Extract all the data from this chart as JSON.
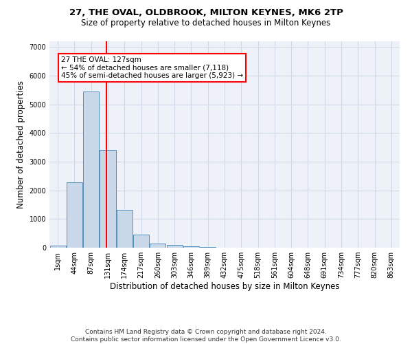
{
  "title1": "27, THE OVAL, OLDBROOK, MILTON KEYNES, MK6 2TP",
  "title2": "Size of property relative to detached houses in Milton Keynes",
  "xlabel": "Distribution of detached houses by size in Milton Keynes",
  "ylabel": "Number of detached properties",
  "footer1": "Contains HM Land Registry data © Crown copyright and database right 2024.",
  "footer2": "Contains public sector information licensed under the Open Government Licence v3.0.",
  "bar_labels": [
    "1sqm",
    "44sqm",
    "87sqm",
    "131sqm",
    "174sqm",
    "217sqm",
    "260sqm",
    "303sqm",
    "346sqm",
    "389sqm",
    "432sqm",
    "475sqm",
    "518sqm",
    "561sqm",
    "604sqm",
    "648sqm",
    "691sqm",
    "734sqm",
    "777sqm",
    "820sqm",
    "863sqm"
  ],
  "bar_values": [
    75,
    2270,
    5460,
    3420,
    1310,
    465,
    155,
    95,
    60,
    30,
    10,
    0,
    0,
    0,
    0,
    0,
    0,
    0,
    0,
    0,
    0
  ],
  "bar_color": "#c8d8e8",
  "bar_edgecolor": "#5090c0",
  "vline_x": 2.93,
  "vline_color": "red",
  "ylim": [
    0,
    7200
  ],
  "yticks": [
    0,
    1000,
    2000,
    3000,
    4000,
    5000,
    6000,
    7000
  ],
  "annotation_text": "27 THE OVAL: 127sqm\n← 54% of detached houses are smaller (7,118)\n45% of semi-detached houses are larger (5,923) →",
  "grid_color": "#d0d8e8",
  "bg_color": "#eef2f8",
  "title1_fontsize": 9.5,
  "title2_fontsize": 8.5,
  "xlabel_fontsize": 8.5,
  "ylabel_fontsize": 8.5,
  "tick_fontsize": 7,
  "footer_fontsize": 6.5,
  "ann_fontsize": 7.5
}
